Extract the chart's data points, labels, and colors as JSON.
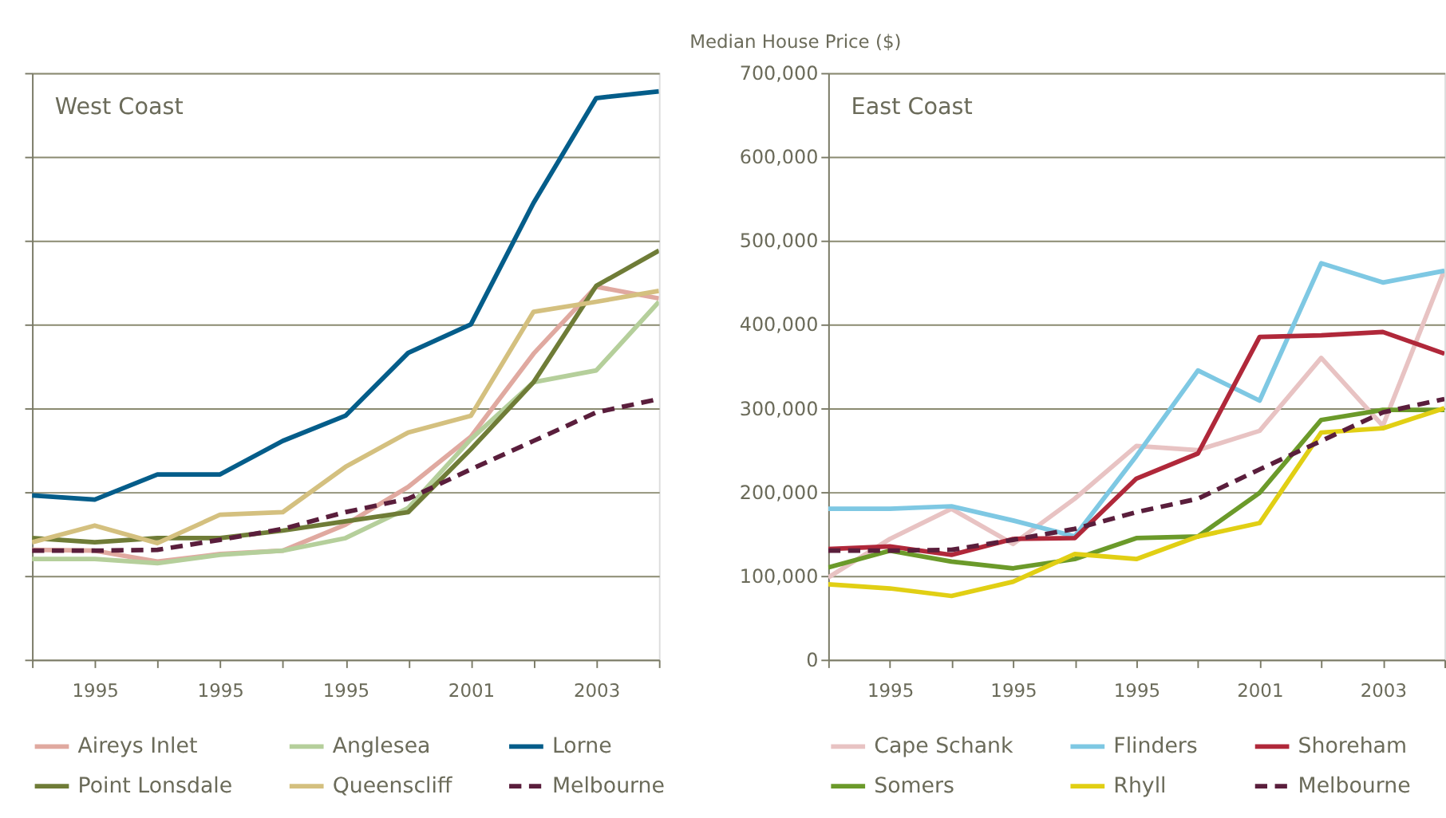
{
  "chart_data": [
    {
      "type": "line",
      "title": "West Coast",
      "categories": [
        null,
        "1995",
        null,
        "1995",
        null,
        "1995",
        null,
        "2001",
        null,
        "2003",
        null
      ],
      "ylim": [
        0,
        700000
      ],
      "yticks": [
        0,
        100000,
        200000,
        300000,
        400000,
        500000,
        600000,
        700000
      ],
      "tick_labels": "x",
      "grid": "y",
      "legend": "bottom",
      "line_style": "solid",
      "series": [
        {
          "name": "Aireys Inlet",
          "color": "#e0a9a0",
          "values": [
            131000,
            130000,
            117000,
            126000,
            130000,
            161000,
            206000,
            266000,
            365000,
            445000,
            431000
          ]
        },
        {
          "name": "Anglesea",
          "color": "#b5cf9b",
          "values": [
            120000,
            120000,
            115000,
            125000,
            130000,
            145000,
            181000,
            263000,
            331000,
            345000,
            427000
          ]
        },
        {
          "name": "Lorne",
          "color": "#045d8a",
          "values": [
            196000,
            191000,
            221000,
            221000,
            261000,
            291000,
            366000,
            400000,
            545000,
            670000,
            678000
          ]
        },
        {
          "name": "Point Lonsdale",
          "color": "#6f7c37",
          "values": [
            145000,
            140000,
            145000,
            145000,
            154000,
            165000,
            176000,
            251000,
            331000,
            446000,
            488000
          ]
        },
        {
          "name": "Queenscliff",
          "color": "#d4c07f",
          "values": [
            140000,
            160000,
            139000,
            173000,
            176000,
            230000,
            271000,
            291000,
            415000,
            427000,
            440000
          ]
        },
        {
          "name": "Melbourne",
          "color": "#5a1e3c",
          "line_style": "dashed",
          "values": [
            130000,
            130000,
            131000,
            143000,
            156000,
            176000,
            192000,
            227000,
            261000,
            295000,
            311000
          ]
        }
      ]
    },
    {
      "type": "line",
      "title": "East Coast",
      "ylabel": "Median House Price ($)",
      "categories": [
        null,
        "1995",
        null,
        "1995",
        null,
        "1995",
        null,
        "2001",
        null,
        "2003",
        null
      ],
      "ylim": [
        0,
        700000
      ],
      "yticks": [
        0,
        {
          "value": 100000,
          "label": "100,000"
        },
        {
          "value": 200000,
          "label": "200,000"
        },
        {
          "value": 300000,
          "label": "300,000"
        },
        {
          "value": 400000,
          "label": "400,000"
        },
        {
          "value": 500000,
          "label": "500,000"
        },
        {
          "value": 600000,
          "label": "600,000"
        },
        {
          "value": 700000,
          "label": "700,000"
        }
      ],
      "grid": "y",
      "legend": "bottom",
      "line_style": "solid",
      "series": [
        {
          "name": "Cape Schank",
          "color": "#e8c3c3",
          "values": [
            98000,
            144000,
            180000,
            138000,
            192000,
            255000,
            250000,
            273000,
            360000,
            279000,
            465000
          ]
        },
        {
          "name": "Flinders",
          "color": "#7ec8e3",
          "values": [
            180000,
            180000,
            183000,
            166000,
            147000,
            243000,
            345000,
            309000,
            473000,
            450000,
            464000
          ]
        },
        {
          "name": "Shoreham",
          "color": "#b0283a",
          "values": [
            132000,
            135000,
            125000,
            144000,
            145000,
            216000,
            246000,
            385000,
            387000,
            391000,
            365000
          ]
        },
        {
          "name": "Somers",
          "color": "#6b9a2a",
          "values": [
            110000,
            130000,
            117000,
            109000,
            120000,
            145000,
            147000,
            199000,
            286000,
            298000,
            298000
          ]
        },
        {
          "name": "Rhyll",
          "color": "#e1cf14",
          "values": [
            90000,
            85000,
            76000,
            93000,
            126000,
            120000,
            147000,
            163000,
            271000,
            276000,
            300000
          ]
        },
        {
          "name": "Melbourne",
          "color": "#5a1e3c",
          "line_style": "dashed",
          "values": [
            130000,
            130000,
            131000,
            143000,
            156000,
            176000,
            192000,
            227000,
            261000,
            295000,
            311000
          ]
        }
      ]
    }
  ]
}
